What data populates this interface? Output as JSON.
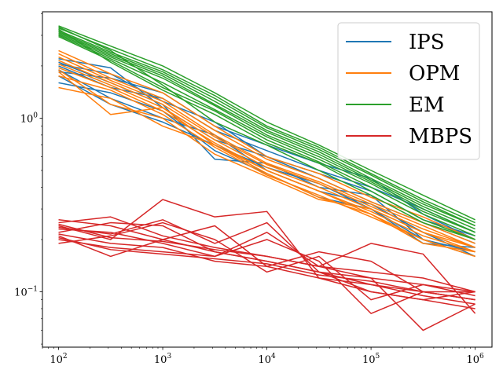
{
  "chart_data": {
    "type": "line",
    "title": "",
    "xlabel": "",
    "ylabel": "",
    "xscale": "log",
    "yscale": "log",
    "xlim": [
      70,
      1450000
    ],
    "ylim": [
      0.048,
      4.1
    ],
    "grid": false,
    "legend_position": "top-right",
    "x": [
      100,
      316,
      1000,
      3162,
      10000,
      31623,
      100000,
      316228,
      1000000
    ],
    "x_ticks": [
      {
        "base": "10",
        "exp": "2",
        "value": 100
      },
      {
        "base": "10",
        "exp": "3",
        "value": 1000
      },
      {
        "base": "10",
        "exp": "4",
        "value": 10000
      },
      {
        "base": "10",
        "exp": "5",
        "value": 100000
      },
      {
        "base": "10",
        "exp": "6",
        "value": 1000000
      }
    ],
    "y_ticks": [
      {
        "base": "10",
        "exp": "0",
        "value": 1
      },
      {
        "base": "10",
        "exp": "−1",
        "value": 0.1
      }
    ],
    "series": [
      {
        "name": "IPS",
        "color": "#1f77b4",
        "runs": [
          [
            2.2,
            1.95,
            1.15,
            0.75,
            0.6,
            0.45,
            0.33,
            0.25,
            0.19
          ],
          [
            2.1,
            1.6,
            1.2,
            0.58,
            0.55,
            0.4,
            0.36,
            0.2,
            0.17
          ],
          [
            2.0,
            1.5,
            1.3,
            0.85,
            0.65,
            0.5,
            0.4,
            0.3,
            0.22
          ],
          [
            1.9,
            1.3,
            1.0,
            0.8,
            0.5,
            0.38,
            0.32,
            0.22,
            0.16
          ],
          [
            1.85,
            1.7,
            1.4,
            0.9,
            0.7,
            0.55,
            0.45,
            0.28,
            0.2
          ],
          [
            1.75,
            1.2,
            0.95,
            0.7,
            0.52,
            0.42,
            0.3,
            0.2,
            0.16
          ],
          [
            1.6,
            1.4,
            1.1,
            0.65,
            0.48,
            0.35,
            0.3,
            0.19,
            0.18
          ],
          [
            2.05,
            1.8,
            1.25,
            0.95,
            0.6,
            0.48,
            0.38,
            0.26,
            0.21
          ]
        ]
      },
      {
        "name": "OPM",
        "color": "#ff7f0e",
        "runs": [
          [
            2.45,
            1.8,
            1.4,
            0.9,
            0.6,
            0.48,
            0.35,
            0.27,
            0.2
          ],
          [
            2.35,
            1.7,
            1.3,
            0.85,
            0.58,
            0.45,
            0.33,
            0.25,
            0.19
          ],
          [
            2.25,
            1.65,
            1.25,
            0.8,
            0.55,
            0.43,
            0.32,
            0.24,
            0.18
          ],
          [
            2.15,
            1.6,
            1.2,
            0.78,
            0.54,
            0.42,
            0.31,
            0.23,
            0.18
          ],
          [
            2.05,
            1.55,
            1.15,
            0.75,
            0.52,
            0.4,
            0.3,
            0.22,
            0.17
          ],
          [
            1.95,
            1.5,
            1.1,
            0.72,
            0.5,
            0.38,
            0.29,
            0.21,
            0.17
          ],
          [
            1.85,
            1.05,
            1.15,
            0.7,
            0.48,
            0.35,
            0.28,
            0.2,
            0.16
          ],
          [
            1.75,
            1.45,
            1.05,
            0.68,
            0.47,
            0.36,
            0.27,
            0.2,
            0.16
          ],
          [
            1.5,
            1.3,
            0.9,
            0.7,
            0.5,
            0.38,
            0.28,
            0.19,
            0.17
          ],
          [
            1.9,
            1.2,
            1.0,
            0.62,
            0.46,
            0.34,
            0.3,
            0.22,
            0.18
          ]
        ]
      },
      {
        "name": "EM",
        "color": "#2ca02c",
        "runs": [
          [
            3.4,
            2.6,
            2.0,
            1.4,
            0.95,
            0.7,
            0.5,
            0.36,
            0.26
          ],
          [
            3.3,
            2.5,
            1.9,
            1.35,
            0.9,
            0.68,
            0.48,
            0.34,
            0.25
          ],
          [
            3.2,
            2.4,
            1.85,
            1.3,
            0.88,
            0.66,
            0.47,
            0.33,
            0.24
          ],
          [
            3.15,
            2.35,
            1.8,
            1.25,
            0.85,
            0.64,
            0.45,
            0.32,
            0.24
          ],
          [
            3.1,
            2.3,
            1.75,
            1.2,
            0.83,
            0.62,
            0.44,
            0.31,
            0.23
          ],
          [
            3.05,
            2.25,
            1.7,
            1.18,
            0.8,
            0.6,
            0.43,
            0.3,
            0.22
          ],
          [
            3.0,
            2.2,
            1.6,
            1.12,
            0.78,
            0.58,
            0.42,
            0.29,
            0.22
          ],
          [
            2.95,
            2.15,
            1.5,
            1.1,
            0.75,
            0.56,
            0.4,
            0.28,
            0.21
          ],
          [
            3.25,
            2.1,
            1.45,
            1.05,
            0.72,
            0.55,
            0.38,
            0.26,
            0.2
          ],
          [
            3.35,
            2.45,
            1.55,
            0.95,
            0.7,
            0.5,
            0.36,
            0.25,
            0.2
          ]
        ]
      },
      {
        "name": "MBPS",
        "color": "#d62728",
        "runs": [
          [
            0.26,
            0.24,
            0.2,
            0.17,
            0.15,
            0.13,
            0.11,
            0.1,
            0.09
          ],
          [
            0.25,
            0.27,
            0.21,
            0.18,
            0.16,
            0.14,
            0.12,
            0.11,
            0.1
          ],
          [
            0.24,
            0.2,
            0.34,
            0.27,
            0.29,
            0.12,
            0.1,
            0.09,
            0.08
          ],
          [
            0.23,
            0.22,
            0.19,
            0.16,
            0.2,
            0.15,
            0.075,
            0.1,
            0.09
          ],
          [
            0.22,
            0.25,
            0.24,
            0.17,
            0.15,
            0.13,
            0.12,
            0.06,
            0.085
          ],
          [
            0.21,
            0.16,
            0.2,
            0.24,
            0.14,
            0.17,
            0.15,
            0.1,
            0.1
          ],
          [
            0.2,
            0.18,
            0.17,
            0.16,
            0.22,
            0.14,
            0.19,
            0.165,
            0.075
          ],
          [
            0.19,
            0.21,
            0.25,
            0.2,
            0.13,
            0.16,
            0.09,
            0.11,
            0.095
          ],
          [
            0.215,
            0.19,
            0.18,
            0.15,
            0.14,
            0.12,
            0.11,
            0.095,
            0.085
          ],
          [
            0.235,
            0.215,
            0.26,
            0.19,
            0.25,
            0.13,
            0.1,
            0.09,
            0.1
          ],
          [
            0.205,
            0.175,
            0.165,
            0.155,
            0.145,
            0.125,
            0.115,
            0.1,
            0.09
          ],
          [
            0.245,
            0.205,
            0.195,
            0.175,
            0.16,
            0.14,
            0.13,
            0.12,
            0.1
          ]
        ]
      }
    ]
  }
}
